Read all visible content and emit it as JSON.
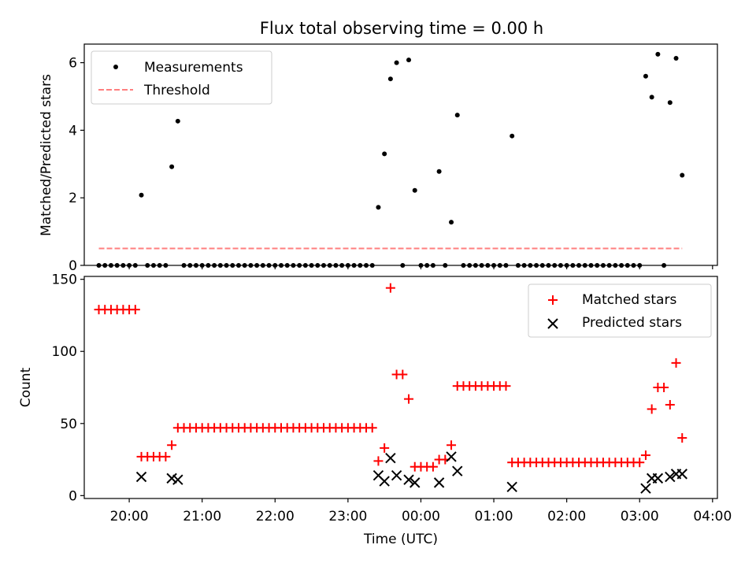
{
  "chart_data": [
    {
      "type": "scatter",
      "title": "Flux total observing time = 0.00 h",
      "xlabel": "",
      "ylabel": "Matched/Predicted stars",
      "xlim": [
        "19:23",
        "04:04"
      ],
      "ylim": [
        0,
        6.55
      ],
      "y_ticks": [
        "0",
        "2",
        "4",
        "6"
      ],
      "legend": {
        "position": "top-left",
        "entries": [
          "Measurements",
          "Threshold"
        ]
      },
      "series": [
        {
          "name": "Measurements",
          "color": "#000000",
          "marker": "dot",
          "points": [
            [
              "19:35",
              0
            ],
            [
              "19:40",
              0
            ],
            [
              "19:45",
              0
            ],
            [
              "19:50",
              0
            ],
            [
              "19:55",
              0
            ],
            [
              "20:00",
              0
            ],
            [
              "20:05",
              0
            ],
            [
              "20:10",
              2.08
            ],
            [
              "20:15",
              0
            ],
            [
              "20:20",
              0
            ],
            [
              "20:25",
              0
            ],
            [
              "20:30",
              0
            ],
            [
              "20:35",
              2.92
            ],
            [
              "20:40",
              4.27
            ],
            [
              "20:45",
              0
            ],
            [
              "20:50",
              0
            ],
            [
              "20:55",
              0
            ],
            [
              "21:00",
              0
            ],
            [
              "21:05",
              0
            ],
            [
              "21:10",
              0
            ],
            [
              "21:15",
              0
            ],
            [
              "21:20",
              0
            ],
            [
              "21:25",
              0
            ],
            [
              "21:30",
              0
            ],
            [
              "21:35",
              0
            ],
            [
              "21:40",
              0
            ],
            [
              "21:45",
              0
            ],
            [
              "21:50",
              0
            ],
            [
              "21:55",
              0
            ],
            [
              "22:00",
              0
            ],
            [
              "22:05",
              0
            ],
            [
              "22:10",
              0
            ],
            [
              "22:15",
              0
            ],
            [
              "22:20",
              0
            ],
            [
              "22:25",
              0
            ],
            [
              "22:30",
              0
            ],
            [
              "22:35",
              0
            ],
            [
              "22:40",
              0
            ],
            [
              "22:45",
              0
            ],
            [
              "22:50",
              0
            ],
            [
              "22:55",
              0
            ],
            [
              "23:00",
              0
            ],
            [
              "23:05",
              0
            ],
            [
              "23:10",
              0
            ],
            [
              "23:15",
              0
            ],
            [
              "23:20",
              0
            ],
            [
              "23:25",
              1.72
            ],
            [
              "23:30",
              3.3
            ],
            [
              "23:35",
              5.52
            ],
            [
              "23:40",
              6.0
            ],
            [
              "23:45",
              0
            ],
            [
              "23:50",
              6.08
            ],
            [
              "23:55",
              2.22
            ],
            [
              "00:00",
              0
            ],
            [
              "00:05",
              0
            ],
            [
              "00:10",
              0
            ],
            [
              "00:15",
              2.78
            ],
            [
              "00:20",
              0
            ],
            [
              "00:25",
              1.28
            ],
            [
              "00:30",
              4.45
            ],
            [
              "00:35",
              0
            ],
            [
              "00:40",
              0
            ],
            [
              "00:45",
              0
            ],
            [
              "00:50",
              0
            ],
            [
              "00:55",
              0
            ],
            [
              "01:00",
              0
            ],
            [
              "01:05",
              0
            ],
            [
              "01:10",
              0
            ],
            [
              "01:15",
              3.83
            ],
            [
              "01:20",
              0
            ],
            [
              "01:25",
              0
            ],
            [
              "01:30",
              0
            ],
            [
              "01:35",
              0
            ],
            [
              "01:40",
              0
            ],
            [
              "01:45",
              0
            ],
            [
              "01:50",
              0
            ],
            [
              "01:55",
              0
            ],
            [
              "02:00",
              0
            ],
            [
              "02:05",
              0
            ],
            [
              "02:10",
              0
            ],
            [
              "02:15",
              0
            ],
            [
              "02:20",
              0
            ],
            [
              "02:25",
              0
            ],
            [
              "02:30",
              0
            ],
            [
              "02:35",
              0
            ],
            [
              "02:40",
              0
            ],
            [
              "02:45",
              0
            ],
            [
              "02:50",
              0
            ],
            [
              "02:55",
              0
            ],
            [
              "03:00",
              0
            ],
            [
              "03:05",
              5.6
            ],
            [
              "03:10",
              4.98
            ],
            [
              "03:15",
              6.25
            ],
            [
              "03:20",
              0
            ],
            [
              "03:25",
              4.82
            ],
            [
              "03:30",
              6.13
            ],
            [
              "03:35",
              2.67
            ]
          ]
        },
        {
          "name": "Threshold",
          "color": "#ff7f7f",
          "line": "dashed",
          "points": [
            [
              "19:35",
              0.5
            ],
            [
              "03:35",
              0.5
            ]
          ]
        }
      ]
    },
    {
      "type": "scatter",
      "title": "",
      "xlabel": "Time (UTC)",
      "ylabel": "Count",
      "xlim": [
        "19:23",
        "04:04"
      ],
      "ylim": [
        -2,
        152
      ],
      "x_ticks": [
        "20:00",
        "21:00",
        "22:00",
        "23:00",
        "00:00",
        "01:00",
        "02:00",
        "03:00",
        "04:00"
      ],
      "y_ticks": [
        "0",
        "50",
        "100",
        "150"
      ],
      "legend": {
        "position": "top-right",
        "entries": [
          "Matched stars",
          "Predicted stars"
        ]
      },
      "series": [
        {
          "name": "Matched stars",
          "color": "#ff0000",
          "marker": "plus",
          "points": [
            [
              "19:35",
              129
            ],
            [
              "19:40",
              129
            ],
            [
              "19:45",
              129
            ],
            [
              "19:50",
              129
            ],
            [
              "19:55",
              129
            ],
            [
              "20:00",
              129
            ],
            [
              "20:05",
              129
            ],
            [
              "20:10",
              27
            ],
            [
              "20:15",
              27
            ],
            [
              "20:20",
              27
            ],
            [
              "20:25",
              27
            ],
            [
              "20:30",
              27
            ],
            [
              "20:35",
              35
            ],
            [
              "20:40",
              47
            ],
            [
              "20:45",
              47
            ],
            [
              "20:50",
              47
            ],
            [
              "20:55",
              47
            ],
            [
              "21:00",
              47
            ],
            [
              "21:05",
              47
            ],
            [
              "21:10",
              47
            ],
            [
              "21:15",
              47
            ],
            [
              "21:20",
              47
            ],
            [
              "21:25",
              47
            ],
            [
              "21:30",
              47
            ],
            [
              "21:35",
              47
            ],
            [
              "21:40",
              47
            ],
            [
              "21:45",
              47
            ],
            [
              "21:50",
              47
            ],
            [
              "21:55",
              47
            ],
            [
              "22:00",
              47
            ],
            [
              "22:05",
              47
            ],
            [
              "22:10",
              47
            ],
            [
              "22:15",
              47
            ],
            [
              "22:20",
              47
            ],
            [
              "22:25",
              47
            ],
            [
              "22:30",
              47
            ],
            [
              "22:35",
              47
            ],
            [
              "22:40",
              47
            ],
            [
              "22:45",
              47
            ],
            [
              "22:50",
              47
            ],
            [
              "22:55",
              47
            ],
            [
              "23:00",
              47
            ],
            [
              "23:05",
              47
            ],
            [
              "23:10",
              47
            ],
            [
              "23:15",
              47
            ],
            [
              "23:20",
              47
            ],
            [
              "23:25",
              24
            ],
            [
              "23:30",
              33
            ],
            [
              "23:35",
              144
            ],
            [
              "23:40",
              84
            ],
            [
              "23:45",
              84
            ],
            [
              "23:50",
              67
            ],
            [
              "23:55",
              20
            ],
            [
              "00:00",
              20
            ],
            [
              "00:05",
              20
            ],
            [
              "00:10",
              20
            ],
            [
              "00:15",
              25
            ],
            [
              "00:20",
              25
            ],
            [
              "00:25",
              35
            ],
            [
              "00:30",
              76
            ],
            [
              "00:35",
              76
            ],
            [
              "00:40",
              76
            ],
            [
              "00:45",
              76
            ],
            [
              "00:50",
              76
            ],
            [
              "00:55",
              76
            ],
            [
              "01:00",
              76
            ],
            [
              "01:05",
              76
            ],
            [
              "01:10",
              76
            ],
            [
              "01:15",
              23
            ],
            [
              "01:20",
              23
            ],
            [
              "01:25",
              23
            ],
            [
              "01:30",
              23
            ],
            [
              "01:35",
              23
            ],
            [
              "01:40",
              23
            ],
            [
              "01:45",
              23
            ],
            [
              "01:50",
              23
            ],
            [
              "01:55",
              23
            ],
            [
              "02:00",
              23
            ],
            [
              "02:05",
              23
            ],
            [
              "02:10",
              23
            ],
            [
              "02:15",
              23
            ],
            [
              "02:20",
              23
            ],
            [
              "02:25",
              23
            ],
            [
              "02:30",
              23
            ],
            [
              "02:35",
              23
            ],
            [
              "02:40",
              23
            ],
            [
              "02:45",
              23
            ],
            [
              "02:50",
              23
            ],
            [
              "02:55",
              23
            ],
            [
              "03:00",
              23
            ],
            [
              "03:05",
              28
            ],
            [
              "03:10",
              60
            ],
            [
              "03:15",
              75
            ],
            [
              "03:20",
              75
            ],
            [
              "03:25",
              63
            ],
            [
              "03:30",
              92
            ],
            [
              "03:35",
              40
            ]
          ]
        },
        {
          "name": "Predicted stars",
          "color": "#000000",
          "marker": "x",
          "points": [
            [
              "20:10",
              13
            ],
            [
              "20:35",
              12
            ],
            [
              "20:40",
              11
            ],
            [
              "23:25",
              14
            ],
            [
              "23:30",
              10
            ],
            [
              "23:35",
              26
            ],
            [
              "23:40",
              14
            ],
            [
              "23:50",
              11
            ],
            [
              "23:55",
              9
            ],
            [
              "00:15",
              9
            ],
            [
              "00:25",
              27
            ],
            [
              "00:30",
              17
            ],
            [
              "01:15",
              6
            ],
            [
              "03:05",
              5
            ],
            [
              "03:10",
              12
            ],
            [
              "03:15",
              12
            ],
            [
              "03:25",
              13
            ],
            [
              "03:30",
              15
            ],
            [
              "03:35",
              15
            ]
          ]
        }
      ]
    }
  ]
}
